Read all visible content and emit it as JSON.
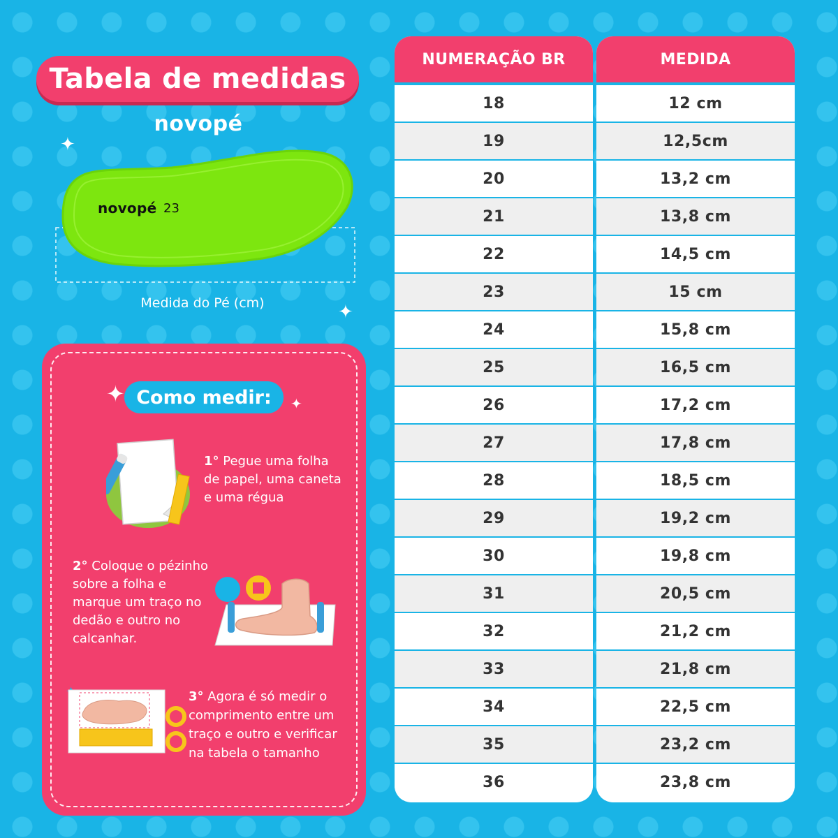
{
  "title": "Tabela de medidas",
  "brand": "novopé",
  "insole": {
    "brand": "novopé",
    "size": "23",
    "color": "#7de60f"
  },
  "measure_caption": "Medida do Pé (cm)",
  "how_to": {
    "heading": "Como medir:",
    "steps": [
      {
        "num": "1°",
        "text": " Pegue uma folha  de papel, uma caneta  e uma régua"
      },
      {
        "num": "2°",
        "text": "  Coloque o pézinho  sobre a folha e marque um traço no dedão e  outro no calcanhar."
      },
      {
        "num": "3°",
        "text": "  Agora é só medir o comprimento entre um traço e outro e verificar na tabela o tamanho"
      }
    ]
  },
  "table": {
    "headers": [
      "NUMERAÇÃO BR",
      "MEDIDA"
    ],
    "rows": [
      [
        "18",
        "12 cm"
      ],
      [
        "19",
        "12,5cm"
      ],
      [
        "20",
        "13,2 cm"
      ],
      [
        "21",
        "13,8 cm"
      ],
      [
        "22",
        "14,5 cm"
      ],
      [
        "23",
        "15 cm"
      ],
      [
        "24",
        "15,8 cm"
      ],
      [
        "25",
        "16,5 cm"
      ],
      [
        "26",
        "17,2 cm"
      ],
      [
        "27",
        "17,8 cm"
      ],
      [
        "28",
        "18,5 cm"
      ],
      [
        "29",
        "19,2 cm"
      ],
      [
        "30",
        "19,8 cm"
      ],
      [
        "31",
        "20,5 cm"
      ],
      [
        "32",
        "21,2 cm"
      ],
      [
        "33",
        "21,8 cm"
      ],
      [
        "34",
        "22,5 cm"
      ],
      [
        "35",
        "23,2 cm"
      ],
      [
        "36",
        "23,8 cm"
      ]
    ]
  },
  "colors": {
    "background": "#19b4e6",
    "accent_pink": "#f23f6d",
    "row_alt": "#efefef",
    "insole_green": "#7de60f"
  },
  "icons": [
    "sparkle-icon",
    "pen-icon",
    "paper-icon",
    "ruler-icon",
    "foot-icon"
  ]
}
